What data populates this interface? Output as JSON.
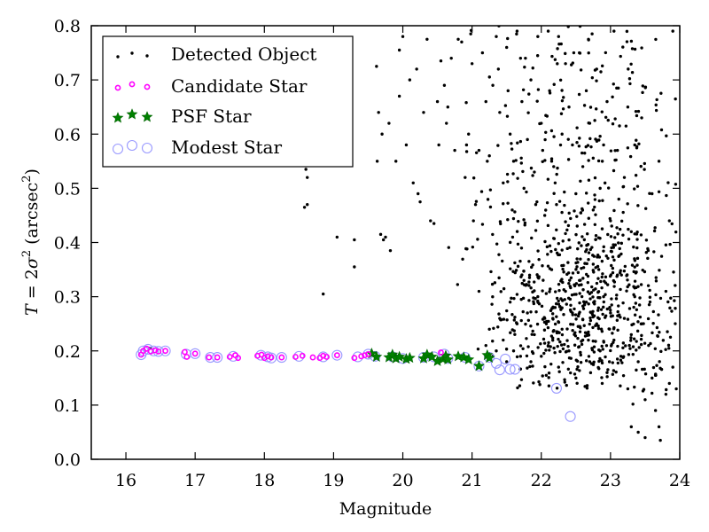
{
  "chart_data": {
    "type": "scatter",
    "title": "",
    "xlabel": "Magnitude",
    "ylabel_parts": {
      "lhs": "T",
      "eq": " = 2",
      "sigma": "σ",
      "sup": "2",
      "unit_open": " (arcsec",
      "unit_sup": "2",
      "unit_close": ")"
    },
    "ylabel": "T = 2σ² (arcsec²)",
    "xlim": [
      15.5,
      24.0
    ],
    "ylim": [
      0.0,
      0.8
    ],
    "xticks": [
      16,
      17,
      18,
      19,
      20,
      21,
      22,
      23,
      24
    ],
    "xtick_labels": [
      "16",
      "17",
      "18",
      "19",
      "20",
      "21",
      "22",
      "23",
      "24"
    ],
    "yticks": [
      0.0,
      0.1,
      0.2,
      0.3,
      0.4,
      0.5,
      0.6,
      0.7,
      0.8
    ],
    "ytick_labels": [
      "0.0",
      "0.1",
      "0.2",
      "0.3",
      "0.4",
      "0.5",
      "0.6",
      "0.7",
      "0.8"
    ],
    "grid": false,
    "legend": {
      "placement": "top-left",
      "entries": [
        {
          "label": "Detected Object",
          "series": "detected"
        },
        {
          "label": "Candidate Star",
          "series": "candidate"
        },
        {
          "label": "PSF Star",
          "series": "psf"
        },
        {
          "label": "Modest Star",
          "series": "modest"
        }
      ]
    },
    "colors": {
      "detected": "#000000",
      "candidate": "#ff00ff",
      "psf": "#008000",
      "modest": "#9999ff"
    },
    "series": [
      {
        "name": "Candidate Star",
        "key": "candidate",
        "points": [
          [
            16.22,
            0.193
          ],
          [
            16.25,
            0.2
          ],
          [
            16.3,
            0.204
          ],
          [
            16.36,
            0.199
          ],
          [
            16.42,
            0.201
          ],
          [
            16.47,
            0.199
          ],
          [
            16.57,
            0.2
          ],
          [
            16.85,
            0.198
          ],
          [
            16.88,
            0.189
          ],
          [
            17.0,
            0.195
          ],
          [
            17.2,
            0.188
          ],
          [
            17.32,
            0.188
          ],
          [
            17.5,
            0.189
          ],
          [
            17.58,
            0.192
          ],
          [
            17.62,
            0.187
          ],
          [
            17.9,
            0.191
          ],
          [
            17.96,
            0.193
          ],
          [
            18.0,
            0.187
          ],
          [
            18.05,
            0.19
          ],
          [
            18.1,
            0.188
          ],
          [
            18.25,
            0.188
          ],
          [
            18.45,
            0.189
          ],
          [
            18.55,
            0.191
          ],
          [
            18.7,
            0.188
          ],
          [
            18.8,
            0.187
          ],
          [
            18.85,
            0.191
          ],
          [
            18.9,
            0.189
          ],
          [
            19.05,
            0.192
          ],
          [
            19.3,
            0.187
          ],
          [
            19.4,
            0.19
          ],
          [
            19.45,
            0.192
          ],
          [
            19.5,
            0.194
          ],
          [
            20.55,
            0.197
          ]
        ]
      },
      {
        "name": "PSF Star",
        "key": "psf",
        "points": [
          [
            19.55,
            0.195
          ],
          [
            19.62,
            0.189
          ],
          [
            19.8,
            0.188
          ],
          [
            19.85,
            0.193
          ],
          [
            19.9,
            0.186
          ],
          [
            19.95,
            0.189
          ],
          [
            20.05,
            0.185
          ],
          [
            20.1,
            0.187
          ],
          [
            20.3,
            0.186
          ],
          [
            20.35,
            0.193
          ],
          [
            20.42,
            0.189
          ],
          [
            20.5,
            0.181
          ],
          [
            20.58,
            0.185
          ],
          [
            20.62,
            0.191
          ],
          [
            20.65,
            0.184
          ],
          [
            20.8,
            0.19
          ],
          [
            20.88,
            0.188
          ],
          [
            20.95,
            0.184
          ],
          [
            21.1,
            0.172
          ],
          [
            21.22,
            0.192
          ],
          [
            21.25,
            0.187
          ]
        ]
      },
      {
        "name": "Modest Star",
        "key": "modest",
        "points": [
          [
            16.22,
            0.193
          ],
          [
            16.25,
            0.2
          ],
          [
            16.32,
            0.203
          ],
          [
            16.4,
            0.2
          ],
          [
            16.47,
            0.199
          ],
          [
            16.57,
            0.2
          ],
          [
            16.87,
            0.194
          ],
          [
            17.0,
            0.195
          ],
          [
            17.22,
            0.188
          ],
          [
            17.32,
            0.188
          ],
          [
            17.55,
            0.19
          ],
          [
            17.95,
            0.192
          ],
          [
            18.05,
            0.189
          ],
          [
            18.1,
            0.187
          ],
          [
            18.25,
            0.188
          ],
          [
            18.5,
            0.19
          ],
          [
            18.85,
            0.189
          ],
          [
            19.05,
            0.192
          ],
          [
            19.35,
            0.189
          ],
          [
            19.5,
            0.194
          ],
          [
            19.6,
            0.19
          ],
          [
            19.85,
            0.189
          ],
          [
            20.0,
            0.186
          ],
          [
            20.3,
            0.188
          ],
          [
            20.45,
            0.189
          ],
          [
            20.6,
            0.194
          ],
          [
            20.65,
            0.186
          ],
          [
            20.9,
            0.188
          ],
          [
            21.1,
            0.172
          ],
          [
            21.25,
            0.188
          ],
          [
            21.35,
            0.177
          ],
          [
            21.4,
            0.165
          ],
          [
            21.48,
            0.185
          ],
          [
            21.55,
            0.166
          ],
          [
            21.62,
            0.166
          ],
          [
            22.22,
            0.131
          ],
          [
            22.42,
            0.079
          ]
        ]
      },
      {
        "name": "Detected Object",
        "key": "detected",
        "points": [
          [
            16.35,
            0.205
          ],
          [
            18.6,
            0.535
          ],
          [
            18.62,
            0.52
          ],
          [
            18.58,
            0.465
          ],
          [
            18.62,
            0.47
          ],
          [
            18.85,
            0.305
          ],
          [
            19.05,
            0.41
          ],
          [
            19.3,
            0.355
          ],
          [
            19.3,
            0.405
          ],
          [
            19.62,
            0.725
          ],
          [
            19.65,
            0.64
          ],
          [
            19.63,
            0.55
          ],
          [
            19.68,
            0.415
          ],
          [
            19.7,
            0.6
          ],
          [
            19.75,
            0.41
          ],
          [
            19.72,
            0.405
          ],
          [
            19.8,
            0.62
          ],
          [
            19.82,
            0.385
          ],
          [
            19.9,
            0.55
          ],
          [
            19.95,
            0.755
          ],
          [
            19.95,
            0.67
          ],
          [
            20.0,
            0.78
          ],
          [
            20.1,
            0.7
          ],
          [
            20.15,
            0.51
          ],
          [
            20.2,
            0.72
          ],
          [
            20.05,
            0.58
          ],
          [
            20.22,
            0.49
          ],
          [
            20.25,
            0.475
          ],
          [
            20.3,
            0.64
          ],
          [
            20.35,
            0.775
          ],
          [
            20.4,
            0.44
          ],
          [
            20.45,
            0.435
          ],
          [
            20.5,
            0.66
          ],
          [
            20.55,
            0.735
          ],
          [
            20.52,
            0.58
          ],
          [
            20.6,
            0.69
          ],
          [
            20.63,
            0.62
          ],
          [
            20.65,
            0.65
          ],
          [
            20.7,
            0.74
          ],
          [
            20.75,
            0.57
          ],
          [
            20.8,
            0.775
          ],
          [
            20.85,
            0.77
          ],
          [
            20.9,
            0.52
          ],
          [
            20.92,
            0.58
          ],
          [
            20.95,
            0.6
          ],
          [
            21.0,
            0.73
          ],
          [
            21.02,
            0.44
          ],
          [
            21.05,
            0.47
          ],
          [
            21.1,
            0.57
          ],
          [
            21.15,
            0.75
          ],
          [
            21.2,
            0.66
          ],
          [
            21.22,
            0.55
          ],
          [
            21.25,
            0.56
          ],
          [
            21.3,
            0.69
          ],
          [
            21.35,
            0.78
          ],
          [
            21.38,
            0.72
          ],
          [
            21.4,
            0.64
          ],
          [
            21.45,
            0.51
          ],
          [
            21.5,
            0.76
          ],
          [
            21.52,
            0.68
          ],
          [
            21.55,
            0.6
          ],
          [
            21.58,
            0.46
          ],
          [
            21.6,
            0.55
          ],
          [
            21.65,
            0.79
          ],
          [
            21.7,
            0.74
          ],
          [
            21.72,
            0.66
          ],
          [
            21.75,
            0.5
          ],
          [
            21.8,
            0.59
          ],
          [
            21.85,
            0.7
          ],
          [
            21.9,
            0.53
          ],
          [
            21.92,
            0.47
          ],
          [
            21.95,
            0.78
          ],
          [
            22.0,
            0.62
          ],
          [
            22.02,
            0.57
          ],
          [
            22.05,
            0.45
          ],
          [
            22.1,
            0.79
          ],
          [
            22.12,
            0.68
          ],
          [
            22.15,
            0.55
          ],
          [
            22.2,
            0.51
          ],
          [
            22.22,
            0.47
          ],
          [
            22.25,
            0.78
          ],
          [
            22.3,
            0.6
          ],
          [
            22.35,
            0.73
          ],
          [
            22.4,
            0.65
          ],
          [
            22.45,
            0.58
          ],
          [
            22.5,
            0.49
          ],
          [
            22.55,
            0.75
          ],
          [
            22.6,
            0.54
          ],
          [
            22.65,
            0.68
          ],
          [
            22.7,
            0.62
          ],
          [
            22.75,
            0.46
          ],
          [
            22.8,
            0.72
          ],
          [
            22.85,
            0.5
          ],
          [
            22.9,
            0.58
          ],
          [
            22.95,
            0.66
          ],
          [
            23.0,
            0.44
          ],
          [
            23.05,
            0.79
          ],
          [
            23.1,
            0.57
          ],
          [
            23.12,
            0.48
          ],
          [
            23.2,
            0.52
          ],
          [
            23.25,
            0.65
          ],
          [
            23.3,
            0.42
          ],
          [
            23.35,
            0.58
          ],
          [
            23.45,
            0.63
          ],
          [
            23.6,
            0.49
          ],
          [
            23.7,
            0.55
          ],
          [
            23.9,
            0.79
          ],
          [
            23.8,
            0.31
          ],
          [
            23.85,
            0.44
          ],
          [
            23.9,
            0.17
          ],
          [
            21.1,
            0.31
          ],
          [
            21.2,
            0.21
          ],
          [
            21.25,
            0.24
          ],
          [
            21.3,
            0.19
          ],
          [
            21.35,
            0.2
          ],
          [
            21.4,
            0.26
          ],
          [
            21.45,
            0.22
          ],
          [
            21.5,
            0.18
          ],
          [
            21.55,
            0.29
          ],
          [
            21.6,
            0.2
          ],
          [
            21.65,
            0.25
          ],
          [
            21.7,
            0.19
          ],
          [
            21.75,
            0.33
          ],
          [
            21.8,
            0.27
          ],
          [
            21.85,
            0.18
          ],
          [
            21.9,
            0.23
          ],
          [
            21.95,
            0.3
          ],
          [
            22.0,
            0.19
          ],
          [
            22.05,
            0.26
          ],
          [
            22.1,
            0.21
          ],
          [
            22.15,
            0.35
          ],
          [
            22.2,
            0.28
          ],
          [
            22.25,
            0.17
          ],
          [
            22.3,
            0.24
          ],
          [
            22.35,
            0.31
          ],
          [
            22.4,
            0.2
          ],
          [
            22.45,
            0.27
          ],
          [
            22.5,
            0.15
          ],
          [
            22.55,
            0.33
          ],
          [
            22.6,
            0.22
          ],
          [
            22.65,
            0.29
          ],
          [
            22.7,
            0.18
          ],
          [
            22.75,
            0.36
          ],
          [
            22.8,
            0.25
          ],
          [
            22.85,
            0.2
          ],
          [
            22.9,
            0.3
          ],
          [
            22.95,
            0.16
          ],
          [
            23.0,
            0.27
          ],
          [
            23.05,
            0.22
          ],
          [
            23.1,
            0.34
          ],
          [
            23.15,
            0.19
          ],
          [
            23.2,
            0.26
          ],
          [
            23.25,
            0.13
          ],
          [
            23.3,
            0.23
          ],
          [
            23.35,
            0.3
          ],
          [
            23.4,
            0.18
          ],
          [
            23.45,
            0.25
          ],
          [
            23.5,
            0.11
          ],
          [
            23.55,
            0.21
          ],
          [
            23.6,
            0.15
          ],
          [
            23.65,
            0.09
          ],
          [
            23.7,
            0.06
          ],
          [
            23.72,
            0.035
          ],
          [
            23.4,
            0.05
          ],
          [
            23.5,
            0.04
          ],
          [
            23.3,
            0.06
          ],
          [
            23.8,
            0.12
          ],
          [
            23.95,
            0.13
          ],
          [
            23.85,
            0.14
          ]
        ],
        "cloud": {
          "description": "dense cloud of detected objects, mag 20.5-24, T 0.1-0.5, concentrated near mag 22-23.5, T 0.18-0.35",
          "count": 900,
          "x_range": [
            20.6,
            23.95
          ],
          "y_range": [
            0.1,
            0.8
          ],
          "center": [
            22.6,
            0.28
          ]
        }
      }
    ]
  }
}
